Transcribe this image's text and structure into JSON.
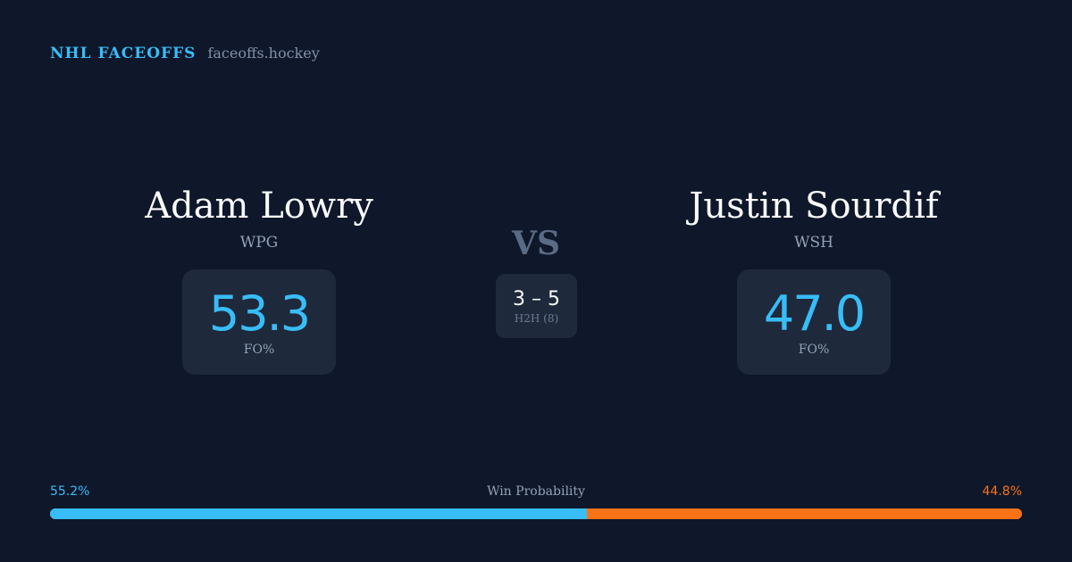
{
  "brand": {
    "name": "NHL FACEOFFS",
    "site": "faceoffs.hockey"
  },
  "left": {
    "name": "Adam Lowry",
    "team": "WPG",
    "fo_pct": "53.3",
    "fo_label": "FO%"
  },
  "right": {
    "name": "Justin Sourdif",
    "team": "WSH",
    "fo_pct": "47.0",
    "fo_label": "FO%"
  },
  "vs": "VS",
  "h2h": {
    "score": "3 – 5",
    "label": "H2H (8)"
  },
  "win_probability": {
    "label": "Win Probability",
    "left": "55.2%",
    "right": "44.8%",
    "left_value": 55.2,
    "right_value": 44.8
  },
  "colors": {
    "left": "#38bdf8",
    "right": "#f97316",
    "background": "#0f172a",
    "card": "#1e293b"
  }
}
